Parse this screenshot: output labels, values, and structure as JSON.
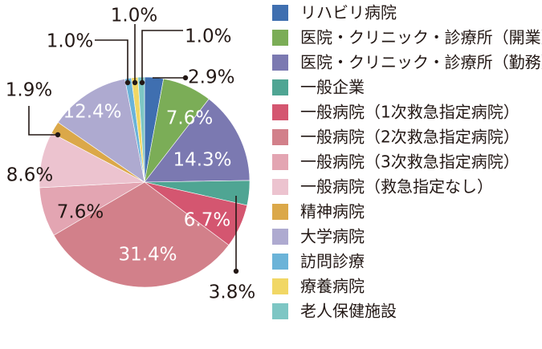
{
  "chart_data": {
    "type": "pie",
    "unit": "%",
    "legend_position": "right",
    "slices": [
      {
        "label": "リハビリ病院",
        "value": 2.9,
        "display": "2.9%",
        "color": "#3f6fb0"
      },
      {
        "label": "医院・クリニック・診療所（開業）",
        "value": 7.6,
        "display": "7.6%",
        "color": "#7bad57"
      },
      {
        "label": "医院・クリニック・診療所（勤務）",
        "value": 14.3,
        "display": "14.3%",
        "color": "#7b79b1"
      },
      {
        "label": "一般企業",
        "value": 3.8,
        "display": "3.8%",
        "color": "#4fa593"
      },
      {
        "label": "一般病院（1次救急指定病院）",
        "value": 6.7,
        "display": "6.7%",
        "color": "#d45670"
      },
      {
        "label": "一般病院（2次救急指定病院）",
        "value": 31.4,
        "display": "31.4%",
        "color": "#d2808a"
      },
      {
        "label": "一般病院（3次救急指定病院）",
        "value": 7.6,
        "display": "7.6%",
        "color": "#e3a5b2"
      },
      {
        "label": "一般病院（救急指定なし）",
        "value": 8.6,
        "display": "8.6%",
        "color": "#ecc3cf"
      },
      {
        "label": "精神病院",
        "value": 1.9,
        "display": "1.9%",
        "color": "#dba849"
      },
      {
        "label": "大学病院",
        "value": 12.4,
        "display": "12.4%",
        "color": "#aeaad0"
      },
      {
        "label": "訪問診療",
        "value": 1.0,
        "display": "1.0%",
        "color": "#6bb3d8"
      },
      {
        "label": "療養病院",
        "value": 1.0,
        "display": "1.0%",
        "color": "#f1d765"
      },
      {
        "label": "老人保健施設",
        "value": 1.0,
        "display": "1.0%",
        "color": "#7dc6c4"
      }
    ]
  }
}
